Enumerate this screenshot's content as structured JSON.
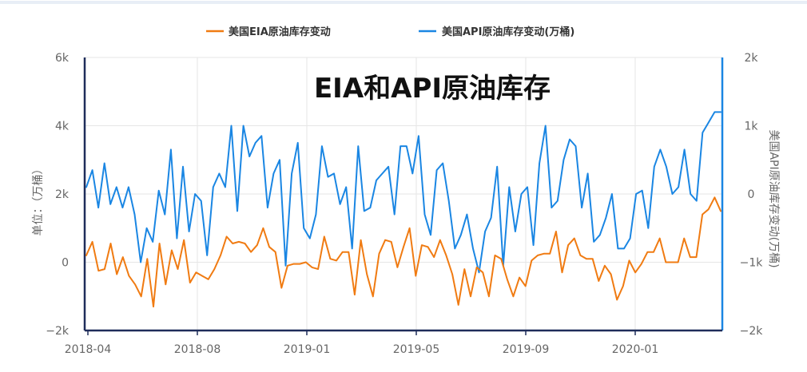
{
  "chart_data": {
    "type": "line",
    "title": "EIA和API原油库存",
    "ylabel_left": "单位：（万桶）",
    "ylabel_right": "美国API原油库存变动(万桶)",
    "xlabel": "",
    "x_ticks": [
      "2018-04",
      "2018-08",
      "2019-01",
      "2019-05",
      "2019-09",
      "2020-01"
    ],
    "y_left_ticks": [
      "−2k",
      "0",
      "2k",
      "4k",
      "6k"
    ],
    "y_right_ticks": [
      "−2k",
      "−1k",
      "0",
      "1k",
      "2k"
    ],
    "ylim_left": [
      -2000,
      6000
    ],
    "ylim_right": [
      -2000,
      2000
    ],
    "legend_position": "top-center",
    "grid": true,
    "colors": {
      "eia": "#f07b12",
      "api": "#1a86e3",
      "left_axis": "#1f2d5a",
      "right_axis": "#1a86e3",
      "grid": "#e6e6e6"
    },
    "series": [
      {
        "name": "美国EIA原油库存变动",
        "axis": "left",
        "values": [
          200,
          600,
          -250,
          -200,
          550,
          -350,
          150,
          -400,
          -650,
          -1000,
          100,
          -1300,
          550,
          -650,
          350,
          -200,
          650,
          -600,
          -300,
          -400,
          -500,
          -200,
          200,
          750,
          550,
          600,
          550,
          300,
          500,
          1000,
          450,
          300,
          -750,
          -100,
          -50,
          -50,
          0,
          -150,
          -200,
          750,
          100,
          50,
          300,
          300,
          -950,
          650,
          -350,
          -1000,
          250,
          650,
          600,
          -150,
          450,
          1000,
          -400,
          500,
          450,
          150,
          650,
          200,
          -350,
          -1250,
          -200,
          -1000,
          -150,
          -300,
          -1000,
          200,
          100,
          -500,
          -1000,
          -450,
          -700,
          50,
          200,
          250,
          250,
          900,
          -300,
          500,
          700,
          200,
          100,
          100,
          -550,
          -100,
          -350,
          -1100,
          -700,
          50,
          -300,
          -50,
          300,
          300,
          700,
          0,
          0,
          0,
          700,
          150,
          150,
          1400,
          1550,
          1900,
          1500
        ]
      },
      {
        "name": "美国API原油库存变动(万桶)",
        "axis": "right",
        "values": [
          100,
          350,
          -200,
          450,
          -150,
          100,
          -200,
          100,
          -300,
          -1000,
          -500,
          -700,
          50,
          -300,
          650,
          -650,
          400,
          -550,
          0,
          -100,
          -900,
          100,
          300,
          100,
          1000,
          -250,
          1000,
          550,
          750,
          850,
          -200,
          300,
          500,
          -1050,
          300,
          750,
          -500,
          -650,
          -300,
          700,
          250,
          300,
          -150,
          100,
          -800,
          700,
          -250,
          -200,
          200,
          300,
          400,
          -300,
          700,
          700,
          300,
          850,
          -300,
          -600,
          350,
          450,
          -100,
          -800,
          -600,
          -300,
          -800,
          -1150,
          -550,
          -350,
          400,
          -1050,
          100,
          -550,
          0,
          100,
          -750,
          450,
          1000,
          -200,
          -100,
          500,
          800,
          700,
          -200,
          300,
          -700,
          -600,
          -350,
          0,
          -800,
          -800,
          -650,
          0,
          50,
          -500,
          400,
          650,
          400,
          0,
          100,
          650,
          0,
          -100,
          900,
          1050,
          1200,
          1200
        ]
      }
    ]
  }
}
